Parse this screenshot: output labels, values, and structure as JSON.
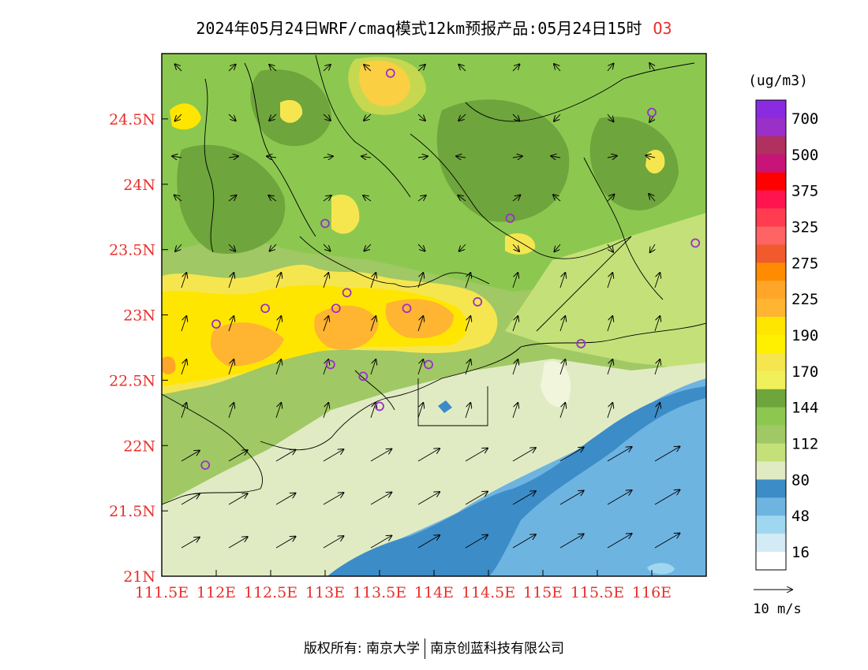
{
  "title": {
    "text": "2024年05月24日WRF/cmaq模式12km预报产品:05月24日15时",
    "species": "O3"
  },
  "axes": {
    "lat_labels": [
      "24.5N",
      "24N",
      "23.5N",
      "23N",
      "22.5N",
      "22N",
      "21.5N",
      "21N"
    ],
    "lon_labels": [
      "111.5E",
      "112E",
      "112.5E",
      "113E",
      "113.5E",
      "114E",
      "114.5E",
      "115E",
      "115.5E",
      "116E"
    ],
    "label_color": "#e8302c"
  },
  "legend": {
    "unit": "(ug/m3)",
    "labels": [
      "700",
      "500",
      "375",
      "325",
      "275",
      "225",
      "190",
      "170",
      "144",
      "112",
      "80",
      "48",
      "16"
    ],
    "colors_top_to_bottom": [
      "#8a2be2",
      "#9b30c8",
      "#b03060",
      "#c81478",
      "#ff0000",
      "#ff1450",
      "#ff3c50",
      "#ff6464",
      "#f05a2d",
      "#ff8c00",
      "#ffa528",
      "#ffb432",
      "#ffe600",
      "#fff000",
      "#f5e650",
      "#f0f05a",
      "#6ea53c",
      "#8cc850",
      "#a0c864",
      "#c3e178",
      "#e1ebc3",
      "#3c8cc8",
      "#6eb4e1",
      "#a0d7f0",
      "#d2ebf5",
      "#ffffff"
    ]
  },
  "wind_scale": {
    "label": "10 m/s"
  },
  "colors": {
    "ocean_deep": "#3c8cc8",
    "ocean_light": "#6eb4e1",
    "low_land": "#e1ebc3",
    "mid_green": "#a0c864",
    "dark_green": "#6ea53c",
    "high_yellow": "#f5e650",
    "high_orange": "#ffb432",
    "station_color": "#9b30c8"
  },
  "stations": [
    {
      "lon": 113.6,
      "lat": 24.85
    },
    {
      "lon": 116.0,
      "lat": 24.55
    },
    {
      "lon": 113.0,
      "lat": 23.7
    },
    {
      "lon": 114.7,
      "lat": 23.74
    },
    {
      "lon": 116.4,
      "lat": 23.55
    },
    {
      "lon": 112.0,
      "lat": 22.93
    },
    {
      "lon": 112.45,
      "lat": 23.05
    },
    {
      "lon": 113.1,
      "lat": 23.05
    },
    {
      "lon": 113.2,
      "lat": 23.17
    },
    {
      "lon": 113.75,
      "lat": 23.05
    },
    {
      "lon": 114.4,
      "lat": 23.1
    },
    {
      "lon": 115.35,
      "lat": 22.78
    },
    {
      "lon": 113.05,
      "lat": 22.62
    },
    {
      "lon": 113.35,
      "lat": 22.53
    },
    {
      "lon": 113.95,
      "lat": 22.62
    },
    {
      "lon": 113.5,
      "lat": 22.3
    },
    {
      "lon": 111.9,
      "lat": 21.85
    }
  ],
  "footer": {
    "left": "版权所有: 南京大学",
    "right": "南京创蓝科技有限公司"
  }
}
